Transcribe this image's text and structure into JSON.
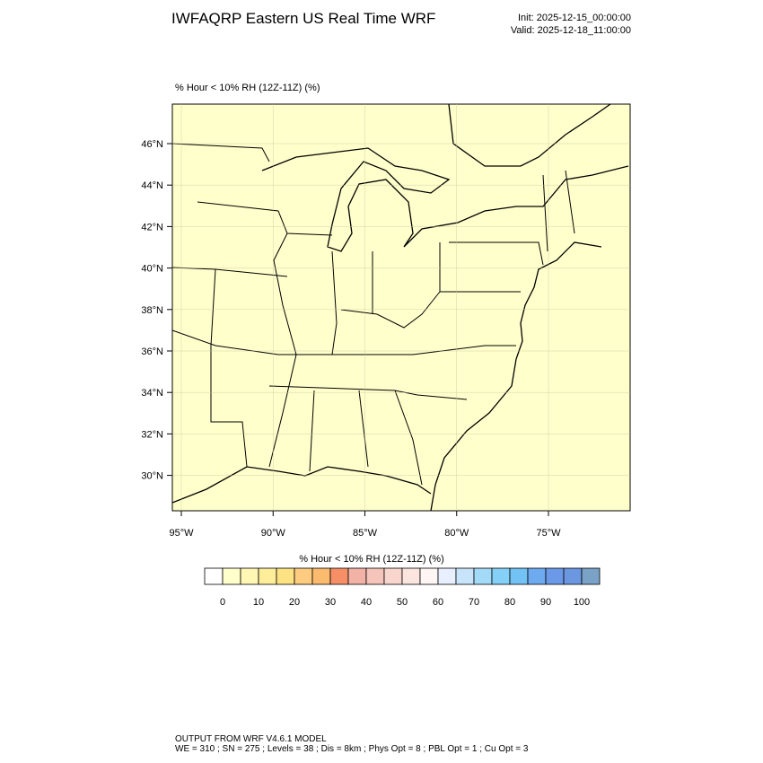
{
  "header": {
    "title": "IWFAQRP Eastern US Real Time WRF",
    "init": "Init: 2025-12-15_00:00:00",
    "valid": "Valid: 2025-12-18_11:00:00"
  },
  "plot": {
    "label": "% Hour < 10% RH (12Z-11Z)   (%)",
    "lat_ticks": [
      {
        "value": 46,
        "label": "46°N"
      },
      {
        "value": 44,
        "label": "44°N"
      },
      {
        "value": 42,
        "label": "42°N"
      },
      {
        "value": 40,
        "label": "40°N"
      },
      {
        "value": 38,
        "label": "38°N"
      },
      {
        "value": 36,
        "label": "36°N"
      },
      {
        "value": 34,
        "label": "34°N"
      },
      {
        "value": 32,
        "label": "32°N"
      },
      {
        "value": 30,
        "label": "30°N"
      }
    ],
    "lon_ticks": [
      {
        "value": 95,
        "label": "95°W"
      },
      {
        "value": 90,
        "label": "90°W"
      },
      {
        "value": 85,
        "label": "85°W"
      },
      {
        "value": 80,
        "label": "80°W"
      },
      {
        "value": 75,
        "label": "75°W"
      }
    ]
  },
  "colorbar": {
    "label": "% Hour < 10% RH (12Z-11Z)  (%)",
    "ticks": [
      0,
      10,
      20,
      30,
      40,
      50,
      60,
      70,
      80,
      90,
      100
    ],
    "colors": [
      "#ffffff",
      "#ffffcc",
      "#fff7b3",
      "#ffee99",
      "#fde283",
      "#fdcc80",
      "#fbbb6e",
      "#f78f66",
      "#f3b2a6",
      "#f5c4ba",
      "#f9d6cd",
      "#fbe5de",
      "#fdf6f4",
      "#e8efff",
      "#c7e4fb",
      "#a2daf8",
      "#84d0f7",
      "#72c2f4",
      "#6eaaf0",
      "#6b99e8",
      "#6b97e0",
      "#7aa2c6"
    ]
  },
  "footer": {
    "line1": "OUTPUT FROM WRF V4.6.1 MODEL",
    "line2": "WE = 310 ; SN = 275 ; Levels = 38 ; Dis = 8km ; Phys Opt = 8 ; PBL Opt = 1 ; Cu Opt = 3"
  }
}
